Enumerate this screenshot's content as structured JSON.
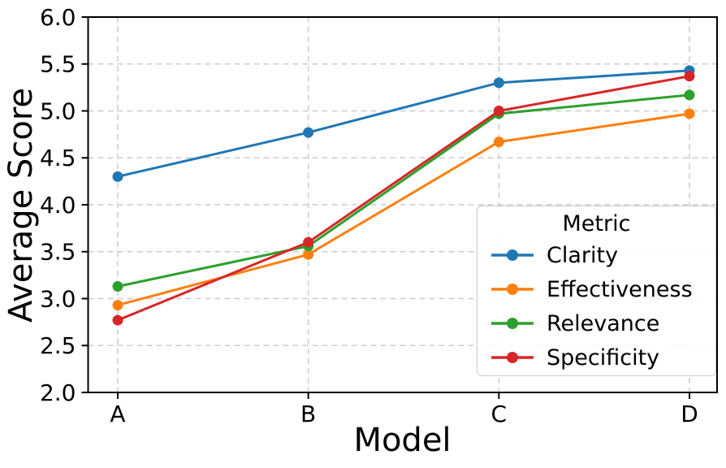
{
  "chart_data": {
    "type": "line",
    "title": "",
    "xlabel": "Model",
    "ylabel": "Average Score",
    "categories": [
      "A",
      "B",
      "C",
      "D"
    ],
    "series": [
      {
        "name": "Clarity",
        "color": "#1f77b4",
        "values": [
          4.3,
          4.77,
          5.3,
          5.43
        ]
      },
      {
        "name": "Effectiveness",
        "color": "#ff7f0e",
        "values": [
          2.93,
          3.47,
          4.67,
          4.97
        ]
      },
      {
        "name": "Relevance",
        "color": "#2ca02c",
        "values": [
          3.13,
          3.56,
          4.97,
          5.17
        ]
      },
      {
        "name": "Specificity",
        "color": "#d62728",
        "values": [
          2.77,
          3.6,
          5.0,
          5.37
        ]
      }
    ],
    "ylim": [
      2.0,
      6.0
    ],
    "yticks": [
      2.0,
      2.5,
      3.0,
      3.5,
      4.0,
      4.5,
      5.0,
      5.5,
      6.0
    ],
    "ytick_labels": [
      "2.0",
      "2.5",
      "3.0",
      "3.5",
      "4.0",
      "4.5",
      "5.0",
      "5.5",
      "6.0"
    ],
    "legend": {
      "title": "Metric",
      "position": "lower right"
    },
    "grid": {
      "visible": true,
      "line_style": "dashed",
      "color": "#cccccc"
    },
    "marker": "circle",
    "axis_color": "#000000",
    "background": "#ffffff"
  }
}
